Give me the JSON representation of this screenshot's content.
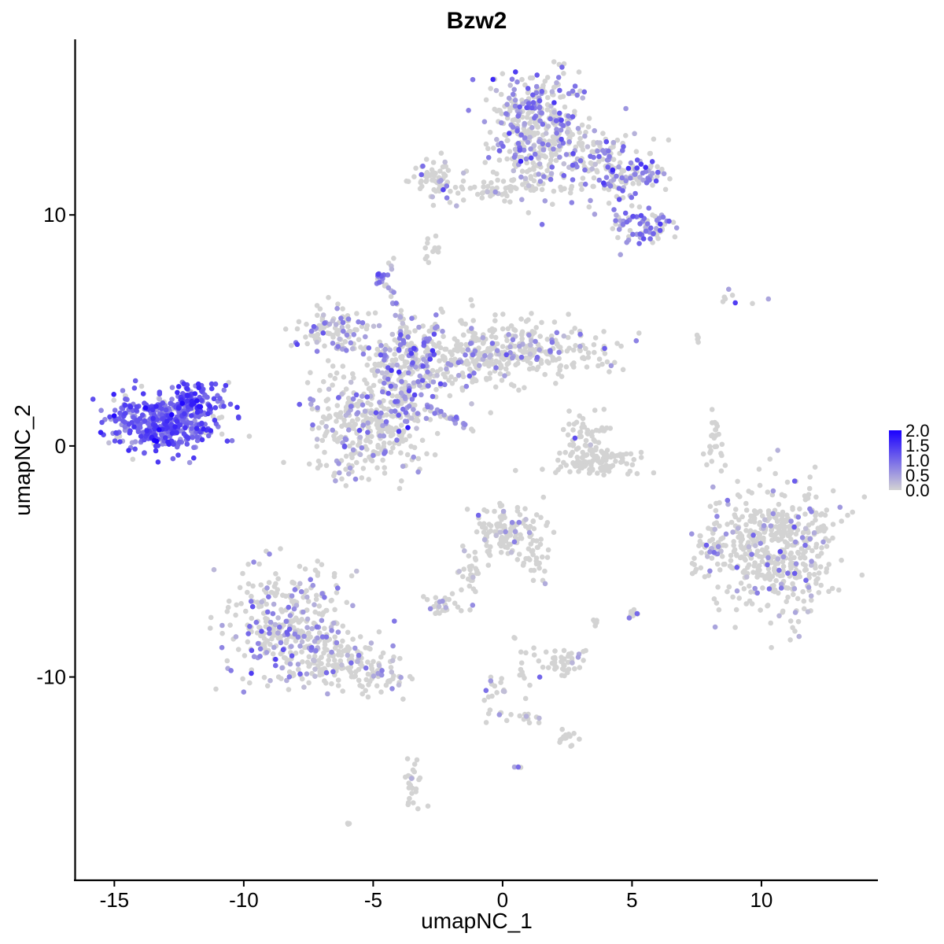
{
  "chart_data": {
    "type": "scatter",
    "title": "Bzw2",
    "xlabel": "umapNC_1",
    "ylabel": "umapNC_2",
    "xlim": [
      -16.5,
      14.5
    ],
    "ylim": [
      -18.8,
      17.6
    ],
    "x_ticks": [
      -15,
      -10,
      -5,
      0,
      5,
      10
    ],
    "x_tick_labels": [
      "-15",
      "-10",
      "-5",
      "0",
      "5",
      "10"
    ],
    "y_ticks": [
      10,
      0,
      -10
    ],
    "y_tick_labels": [
      "10",
      "0",
      "-10"
    ],
    "grid": false,
    "legend_position": "right",
    "color_scale": {
      "low_color": "#d3d3d3",
      "high_color": "#1a00ff",
      "min": 0.0,
      "max": 2.0,
      "ticks": [
        2.0,
        1.5,
        1.0,
        0.5,
        0.0
      ],
      "tick_labels": [
        "2.0",
        "1.5",
        "1.0",
        "0.5",
        "0.0"
      ]
    },
    "clusters": [
      {
        "cx": -13.0,
        "cy": 1.0,
        "sx": 1.1,
        "sy": 0.65,
        "n": 430,
        "expr": 0.92,
        "mean": 1.05
      },
      {
        "cx": -12.0,
        "cy": 2.0,
        "sx": 0.55,
        "sy": 0.4,
        "n": 90,
        "expr": 0.95,
        "mean": 1.2
      },
      {
        "cx": -5.2,
        "cy": 1.0,
        "sx": 1.2,
        "sy": 1.1,
        "n": 380,
        "expr": 0.3,
        "mean": 0.6
      },
      {
        "cx": -3.6,
        "cy": 3.6,
        "sx": 0.9,
        "sy": 0.8,
        "n": 210,
        "expr": 0.45,
        "mean": 0.7
      },
      {
        "cx": -1.0,
        "cy": 4.0,
        "sx": 1.0,
        "sy": 0.8,
        "n": 170,
        "expr": 0.25,
        "mean": 0.6
      },
      {
        "cx": 1.3,
        "cy": 4.2,
        "sx": 1.4,
        "sy": 0.55,
        "n": 200,
        "expr": 0.1,
        "mean": 0.6
      },
      {
        "cx": -6.4,
        "cy": 5.0,
        "sx": 0.8,
        "sy": 0.5,
        "n": 110,
        "expr": 0.35,
        "mean": 0.6
      },
      {
        "cx": -4.6,
        "cy": 7.3,
        "sx": 0.2,
        "sy": 0.3,
        "n": 20,
        "expr": 0.7,
        "mean": 0.8
      },
      {
        "cx": 1.3,
        "cy": 14.5,
        "sx": 1.0,
        "sy": 0.9,
        "n": 240,
        "expr": 0.45,
        "mean": 0.7
      },
      {
        "cx": 1.2,
        "cy": 12.6,
        "sx": 0.8,
        "sy": 0.9,
        "n": 140,
        "expr": 0.3,
        "mean": 0.6
      },
      {
        "cx": 3.5,
        "cy": 12.2,
        "sx": 1.0,
        "sy": 0.8,
        "n": 160,
        "expr": 0.3,
        "mean": 0.6
      },
      {
        "cx": 5.2,
        "cy": 11.8,
        "sx": 0.6,
        "sy": 0.35,
        "n": 70,
        "expr": 0.6,
        "mean": 0.8
      },
      {
        "cx": 5.3,
        "cy": 9.6,
        "sx": 0.6,
        "sy": 0.45,
        "n": 80,
        "expr": 0.45,
        "mean": 0.8
      },
      {
        "cx": -2.5,
        "cy": 11.5,
        "sx": 0.55,
        "sy": 0.45,
        "n": 70,
        "expr": 0.2,
        "mean": 0.6
      },
      {
        "cx": -0.3,
        "cy": 11.1,
        "sx": 1.0,
        "sy": 0.2,
        "n": 40,
        "expr": 0.1,
        "mean": 0.5
      },
      {
        "cx": -2.8,
        "cy": 8.6,
        "sx": 0.2,
        "sy": 0.3,
        "n": 12,
        "expr": 0.0,
        "mean": 0.4
      },
      {
        "cx": -8.3,
        "cy": -7.8,
        "sx": 1.1,
        "sy": 1.3,
        "n": 330,
        "expr": 0.3,
        "mean": 0.6
      },
      {
        "cx": -6.3,
        "cy": -9.2,
        "sx": 0.9,
        "sy": 0.6,
        "n": 130,
        "expr": 0.2,
        "mean": 0.5
      },
      {
        "cx": -4.6,
        "cy": -10.0,
        "sx": 0.6,
        "sy": 0.4,
        "n": 45,
        "expr": 0.25,
        "mean": 0.5
      },
      {
        "cx": -3.5,
        "cy": -14.6,
        "sx": 0.25,
        "sy": 0.5,
        "n": 25,
        "expr": 0.1,
        "mean": 0.5
      },
      {
        "cx": -6.0,
        "cy": -16.2,
        "sx": 0.1,
        "sy": 0.1,
        "n": 3,
        "expr": 0.3,
        "mean": 0.5
      },
      {
        "cx": 10.5,
        "cy": -4.6,
        "sx": 1.2,
        "sy": 1.4,
        "n": 520,
        "expr": 0.14,
        "mean": 0.6
      },
      {
        "cx": 8.1,
        "cy": -4.6,
        "sx": 0.25,
        "sy": 0.5,
        "n": 30,
        "expr": 0.3,
        "mean": 0.6
      },
      {
        "cx": 3.6,
        "cy": -0.7,
        "sx": 0.9,
        "sy": 0.3,
        "n": 110,
        "expr": 0.0,
        "mean": 0.3
      },
      {
        "cx": 3.2,
        "cy": 0.5,
        "sx": 0.4,
        "sy": 0.5,
        "n": 50,
        "expr": 0.1,
        "mean": 0.5
      },
      {
        "cx": 8.2,
        "cy": 0.4,
        "sx": 0.2,
        "sy": 0.6,
        "n": 25,
        "expr": 0.0,
        "mean": 0.3
      },
      {
        "cx": 0.1,
        "cy": -3.6,
        "sx": 0.6,
        "sy": 0.6,
        "n": 110,
        "expr": 0.12,
        "mean": 0.5
      },
      {
        "cx": 1.3,
        "cy": -4.8,
        "sx": 0.3,
        "sy": 0.7,
        "n": 35,
        "expr": 0.05,
        "mean": 0.5
      },
      {
        "cx": -1.3,
        "cy": -5.8,
        "sx": 0.35,
        "sy": 0.6,
        "n": 25,
        "expr": 0.1,
        "mean": 0.5
      },
      {
        "cx": -2.4,
        "cy": -6.9,
        "sx": 0.35,
        "sy": 0.25,
        "n": 25,
        "expr": 0.2,
        "mean": 0.6
      },
      {
        "cx": 2.3,
        "cy": -9.3,
        "sx": 0.5,
        "sy": 0.35,
        "n": 45,
        "expr": 0.05,
        "mean": 0.5
      },
      {
        "cx": 5.0,
        "cy": -7.3,
        "sx": 0.12,
        "sy": 0.15,
        "n": 10,
        "expr": 0.3,
        "mean": 0.6
      },
      {
        "cx": 3.5,
        "cy": -7.6,
        "sx": 0.1,
        "sy": 0.1,
        "n": 5,
        "expr": 0.0,
        "mean": 0.3
      },
      {
        "cx": -0.3,
        "cy": -10.8,
        "sx": 0.25,
        "sy": 0.6,
        "n": 20,
        "expr": 0.15,
        "mean": 0.5
      },
      {
        "cx": 2.3,
        "cy": -12.6,
        "sx": 0.3,
        "sy": 0.2,
        "n": 15,
        "expr": 0.05,
        "mean": 0.5
      },
      {
        "cx": 0.8,
        "cy": -11.8,
        "sx": 0.5,
        "sy": 0.15,
        "n": 10,
        "expr": 0.1,
        "mean": 0.5
      },
      {
        "cx": 0.6,
        "cy": -14.0,
        "sx": 0.1,
        "sy": 0.1,
        "n": 3,
        "expr": 0.5,
        "mean": 0.6
      },
      {
        "cx": 9.0,
        "cy": 6.6,
        "sx": 1.1,
        "sy": 0.25,
        "n": 8,
        "expr": 0.5,
        "mean": 0.6
      },
      {
        "cx": 7.6,
        "cy": 4.6,
        "sx": 0.1,
        "sy": 0.2,
        "n": 4,
        "expr": 0.0,
        "mean": 0.3
      }
    ],
    "streams": [
      {
        "from": [
          -4.3,
          6.8
        ],
        "to": [
          -3.4,
          3.8
        ],
        "n": 30,
        "expr": 0.4,
        "mean": 0.6
      },
      {
        "from": [
          -3.0,
          1.8
        ],
        "to": [
          -1.2,
          0.7
        ],
        "n": 30,
        "expr": 0.5,
        "mean": 0.6
      },
      {
        "from": [
          -3.0,
          4.0
        ],
        "to": [
          -2.4,
          6.0
        ],
        "n": 18,
        "expr": 0.4,
        "mean": 0.6
      },
      {
        "from": [
          -1.2,
          -5.8
        ],
        "to": [
          0.0,
          -4.0
        ],
        "n": 12,
        "expr": 0.1,
        "mean": 0.5
      },
      {
        "from": [
          0.5,
          -8.0
        ],
        "to": [
          1.0,
          -12.0
        ],
        "n": 14,
        "expr": 0.1,
        "mean": 0.5
      }
    ]
  }
}
